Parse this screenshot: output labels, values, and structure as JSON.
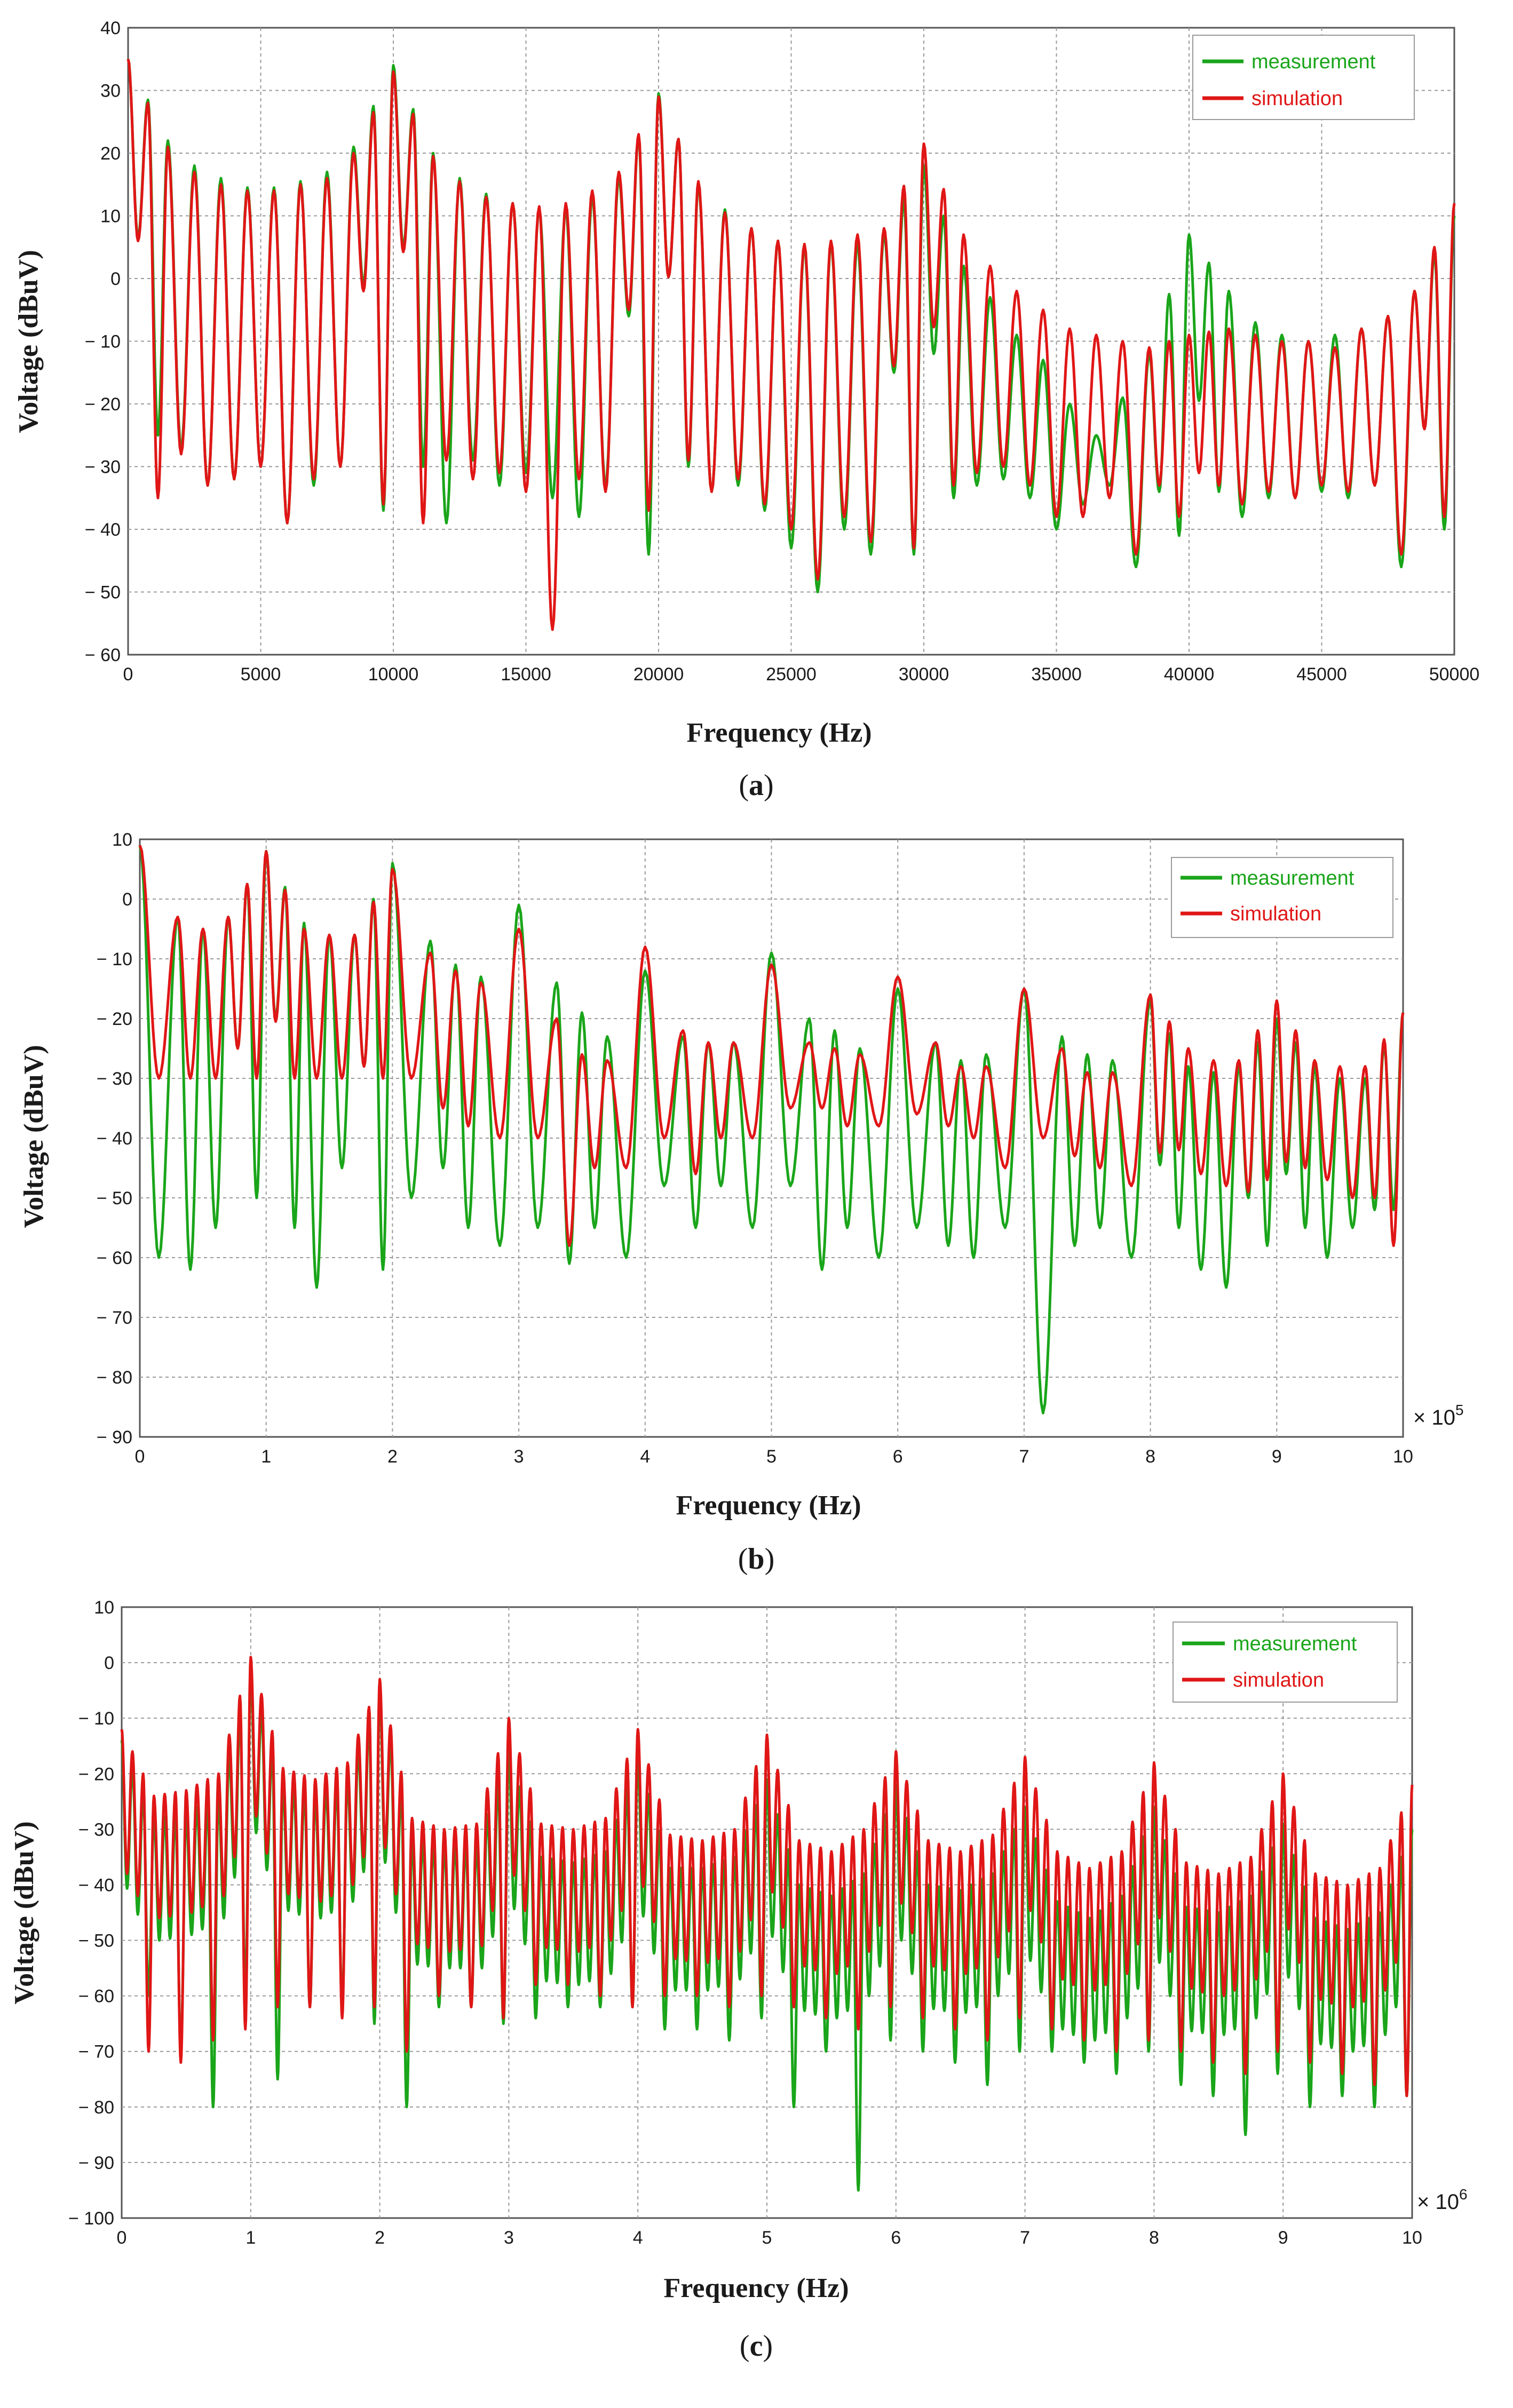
{
  "colors": {
    "measurement": "#1aa51a",
    "simulation": "#e01616",
    "grid": "#9a9a9a",
    "axis": "#555555"
  },
  "chart_data": [
    {
      "id": "a",
      "type": "line",
      "caption": "a",
      "xlabel": "Frequency (Hz)",
      "ylabel": "Voltage (dBuV)",
      "xlim": [
        0,
        50000
      ],
      "ylim": [
        -60,
        40
      ],
      "x_ticks": [
        0,
        5000,
        10000,
        15000,
        20000,
        25000,
        30000,
        35000,
        40000,
        45000,
        50000
      ],
      "x_tick_labels": [
        "0",
        "5000",
        "10000",
        "15000",
        "20000",
        "25000",
        "30000",
        "35000",
        "40000",
        "45000",
        "50000"
      ],
      "y_ticks": [
        -60,
        -50,
        -40,
        -30,
        -20,
        -10,
        0,
        10,
        20,
        30,
        40
      ],
      "y_tick_labels": [
        "− 60",
        "− 50",
        "− 40",
        "− 30",
        "− 20",
        "− 10",
        "0",
        "10",
        "20",
        "30",
        "40"
      ],
      "x_multiplier": null,
      "legend": [
        "measurement",
        "simulation"
      ],
      "lobe_width": 1000,
      "series": [
        {
          "name": "measurement",
          "peaks_x": [
            0,
            1500,
            2500,
            3500,
            4500,
            5500,
            6500,
            7500,
            8500,
            10000,
            11500,
            12500,
            13500,
            14500,
            15500,
            16500,
            17500,
            18500,
            20000,
            21500,
            22500,
            23500,
            24500,
            25500,
            26500,
            27500,
            28500,
            30000,
            31500,
            32500,
            33500,
            34500,
            35500,
            36500,
            37500,
            38500,
            40000,
            41500,
            42500,
            43500,
            44500,
            45500,
            46500,
            47500,
            48500,
            50000
          ],
          "peaks_y": [
            35,
            22,
            18,
            16,
            14.5,
            14.5,
            15.5,
            17,
            21,
            34,
            20,
            16,
            13.5,
            12,
            11,
            11,
            13,
            16,
            29.5,
            15,
            11,
            8,
            6,
            5,
            5.5,
            5.5,
            7,
            18,
            2,
            -3,
            -9,
            -13,
            -20,
            -25,
            -19,
            -12,
            7,
            -2,
            -7,
            -9,
            -10,
            -9,
            -8,
            -6,
            -2,
            10
          ],
          "nulls_y": [
            -25,
            -27,
            -33,
            -32,
            -30,
            -39,
            -33,
            -30,
            -37,
            -30,
            -39,
            -29,
            -33,
            -31,
            -35,
            -38,
            -33,
            -44,
            -30,
            -34,
            -33,
            -37,
            -43,
            -50,
            -40,
            -44,
            -44,
            -35,
            -33,
            -32,
            -35,
            -40,
            -36,
            -33,
            -46,
            -41,
            -34,
            -38,
            -35,
            -35,
            -34,
            -35,
            -33,
            -46,
            -40
          ]
        },
        {
          "name": "simulation",
          "peaks_x": [
            0,
            1500,
            2500,
            3500,
            4500,
            5500,
            6500,
            7500,
            8500,
            10000,
            11500,
            12500,
            13500,
            14500,
            15500,
            16500,
            17500,
            18500,
            20000,
            21500,
            22500,
            23500,
            24500,
            25500,
            26500,
            27500,
            28500,
            30000,
            31500,
            32500,
            33500,
            34500,
            35500,
            36500,
            37500,
            38500,
            40000,
            41500,
            42500,
            43500,
            44500,
            45500,
            46500,
            47500,
            48500,
            50000
          ],
          "peaks_y": [
            35,
            21,
            17,
            15,
            14,
            14,
            15,
            16,
            20,
            33,
            19.5,
            15.5,
            13,
            12,
            11.5,
            12,
            14,
            17,
            29,
            15.5,
            10.5,
            8,
            6,
            5.5,
            6,
            7,
            8,
            21.5,
            7,
            2,
            -2,
            -5,
            -8,
            -9,
            -10,
            -11,
            -9,
            -8,
            -9,
            -10,
            -10,
            -11,
            -8,
            -6,
            -2,
            12
          ],
          "nulls_y": [
            -35,
            -28,
            -33,
            -32,
            -30,
            -39,
            -32,
            -30,
            -36,
            -39,
            -29,
            -32,
            -31,
            -34,
            -56,
            -32,
            -34,
            -37,
            -29,
            -34,
            -32,
            -36,
            -40,
            -48,
            -38,
            -42,
            -43,
            -33,
            -31,
            -30,
            -33,
            -38,
            -38,
            -35,
            -44,
            -38,
            -33,
            -36,
            -34,
            -35,
            -33,
            -34,
            -33,
            -44,
            -38
          ]
        }
      ]
    },
    {
      "id": "b",
      "type": "line",
      "caption": "b",
      "xlabel": "Frequency (Hz)",
      "ylabel": "Voltage (dBuV)",
      "xlim": [
        0,
        10
      ],
      "ylim": [
        -90,
        10
      ],
      "x_ticks": [
        0,
        1,
        2,
        3,
        4,
        5,
        6,
        7,
        8,
        9,
        10
      ],
      "x_tick_labels": [
        "0",
        "1",
        "2",
        "3",
        "4",
        "5",
        "6",
        "7",
        "8",
        "9",
        "10"
      ],
      "y_ticks": [
        -90,
        -80,
        -70,
        -60,
        -50,
        -40,
        -30,
        -20,
        -10,
        0,
        10
      ],
      "y_tick_labels": [
        "− 90",
        "− 80",
        "− 70",
        "− 60",
        "− 50",
        "− 40",
        "− 30",
        "− 20",
        "− 10",
        "0",
        "10"
      ],
      "x_multiplier": {
        "base": "× 10",
        "exp": "5"
      },
      "legend": [
        "measurement",
        "simulation"
      ],
      "lobe_width": 0.2,
      "series": [
        {
          "name": "measurement",
          "peaks_x": [
            0,
            0.3,
            0.5,
            0.7,
            1.0,
            1.3,
            1.5,
            1.7,
            2.0,
            2.3,
            2.5,
            2.7,
            3.0,
            3.3,
            3.5,
            3.7,
            4.0,
            4.3,
            4.5,
            4.7,
            5.0,
            5.3,
            5.5,
            5.7,
            6.0,
            6.3,
            6.5,
            6.7,
            7.0,
            7.3,
            7.5,
            7.7,
            8.0,
            8.3,
            8.5,
            8.7,
            9.0,
            9.3,
            9.5,
            9.7,
            10.0
          ],
          "peaks_y": [
            9,
            -3,
            -5,
            -3,
            8,
            -4,
            -6,
            -6,
            6,
            -7,
            -11,
            -13,
            -1,
            -14,
            -19,
            -23,
            -12,
            -23,
            -24,
            -24,
            -9,
            -20,
            -22,
            -25,
            -15,
            -24,
            -27,
            -26,
            -15,
            -23,
            -26,
            -27,
            -17,
            -28,
            -29,
            -28,
            -20,
            -28,
            -30,
            -30,
            -19
          ],
          "nulls_y": [
            -60,
            -62,
            -55,
            -50,
            -55,
            -65,
            -45,
            -62,
            -50,
            -45,
            -55,
            -58,
            -55,
            -61,
            -55,
            -60,
            -48,
            -55,
            -48,
            -55,
            -48,
            -62,
            -55,
            -60,
            -55,
            -58,
            -60,
            -55,
            -86,
            -58,
            -55,
            -60,
            -55,
            -62,
            -65,
            -58,
            -55,
            -60,
            -55,
            -52
          ]
        },
        {
          "name": "simulation",
          "peaks_x": [
            0,
            0.3,
            0.5,
            0.7,
            1.0,
            1.3,
            1.5,
            1.7,
            2.0,
            2.3,
            2.5,
            2.7,
            3.0,
            3.3,
            3.5,
            3.7,
            4.0,
            4.3,
            4.5,
            4.7,
            5.0,
            5.3,
            5.5,
            5.7,
            6.0,
            6.3,
            6.5,
            6.7,
            7.0,
            7.3,
            7.5,
            7.7,
            8.0,
            8.3,
            8.5,
            8.7,
            9.0,
            9.3,
            9.5,
            9.7,
            10.0
          ],
          "peaks_y": [
            9,
            -3,
            -5,
            -3,
            8,
            -5,
            -6,
            -6,
            5,
            -9,
            -12,
            -14,
            -5,
            -20,
            -26,
            -27,
            -8,
            -22,
            -24,
            -24,
            -11,
            -24,
            -25,
            -26,
            -13,
            -24,
            -28,
            -28,
            -15,
            -25,
            -29,
            -29,
            -16,
            -25,
            -27,
            -27,
            -17,
            -27,
            -28,
            -28,
            -19
          ],
          "nulls_y": [
            -30,
            -30,
            -30,
            -30,
            -30,
            -30,
            -30,
            -30,
            -30,
            -35,
            -38,
            -40,
            -40,
            -58,
            -45,
            -45,
            -40,
            -46,
            -40,
            -40,
            -35,
            -35,
            -38,
            -38,
            -36,
            -38,
            -40,
            -45,
            -40,
            -43,
            -45,
            -48,
            -42,
            -46,
            -48,
            -47,
            -45,
            -47,
            -50,
            -58
          ]
        }
      ]
    },
    {
      "id": "c",
      "type": "line",
      "caption": "c",
      "xlabel": "Frequency (Hz)",
      "ylabel": "Voltage (dBuV)",
      "xlim": [
        0,
        10
      ],
      "ylim": [
        -100,
        10
      ],
      "x_ticks": [
        0,
        1,
        2,
        3,
        4,
        5,
        6,
        7,
        8,
        9,
        10
      ],
      "x_tick_labels": [
        "0",
        "1",
        "2",
        "3",
        "4",
        "5",
        "6",
        "7",
        "8",
        "9",
        "10"
      ],
      "y_ticks": [
        -100,
        -90,
        -80,
        -70,
        -60,
        -50,
        -40,
        -30,
        -20,
        -10,
        0,
        10
      ],
      "y_tick_labels": [
        "− 100",
        "− 90",
        "− 80",
        "− 70",
        "− 60",
        "− 50",
        "− 40",
        "− 30",
        "− 20",
        "− 10",
        "0",
        "10"
      ],
      "x_multiplier": {
        "base": "× 10",
        "exp": "6"
      },
      "legend": [
        "measurement",
        "simulation"
      ],
      "lobe_width": 0.1,
      "series": [
        {
          "name": "measurement",
          "peaks_x": [
            0,
            0.25,
            0.5,
            0.75,
            1.0,
            1.25,
            1.5,
            1.75,
            2.0,
            2.25,
            2.5,
            2.75,
            3.0,
            3.25,
            3.5,
            3.75,
            4.0,
            4.25,
            4.5,
            4.75,
            5.0,
            5.25,
            5.5,
            5.75,
            6.0,
            6.25,
            6.5,
            6.75,
            7.0,
            7.25,
            7.5,
            7.75,
            8.0,
            8.25,
            8.5,
            8.75,
            9.0,
            9.25,
            9.5,
            9.75,
            10.0
          ],
          "peaks_y": [
            -14,
            -28,
            -27,
            -24,
            -2,
            -22,
            -24,
            -21,
            -5,
            -32,
            -33,
            -33,
            -16,
            -35,
            -36,
            -34,
            -17,
            -37,
            -37,
            -35,
            -21,
            -40,
            -42,
            -38,
            -22,
            -40,
            -41,
            -38,
            -26,
            -43,
            -46,
            -42,
            -26,
            -44,
            -45,
            -42,
            -29,
            -46,
            -48,
            -45,
            -30
          ],
          "nulls_y": [
            -60,
            -70,
            -80,
            -60,
            -75,
            -62,
            -62,
            -65,
            -80,
            -62,
            -62,
            -65,
            -64,
            -62,
            -62,
            -62,
            -66,
            -66,
            -68,
            -64,
            -80,
            -70,
            -95,
            -68,
            -70,
            -72,
            -76,
            -70,
            -70,
            -72,
            -74,
            -70,
            -76,
            -78,
            -85,
            -74,
            -80,
            -78,
            -80,
            -78
          ]
        },
        {
          "name": "simulation",
          "peaks_x": [
            0,
            0.25,
            0.5,
            0.75,
            1.0,
            1.25,
            1.5,
            1.75,
            2.0,
            2.25,
            2.5,
            2.75,
            3.0,
            3.25,
            3.5,
            3.75,
            4.0,
            4.25,
            4.5,
            4.75,
            5.0,
            5.25,
            5.5,
            5.75,
            6.0,
            6.25,
            6.5,
            6.75,
            7.0,
            7.25,
            7.5,
            7.75,
            8.0,
            8.25,
            8.5,
            8.75,
            9.0,
            9.25,
            9.5,
            9.75,
            10.0
          ],
          "peaks_y": [
            -12,
            -24,
            -23,
            -20,
            1,
            -19,
            -21,
            -18,
            -3,
            -28,
            -30,
            -29,
            -10,
            -29,
            -30,
            -28,
            -12,
            -31,
            -32,
            -30,
            -13,
            -32,
            -34,
            -30,
            -16,
            -32,
            -34,
            -31,
            -17,
            -34,
            -37,
            -34,
            -18,
            -36,
            -38,
            -35,
            -20,
            -38,
            -40,
            -37,
            -22
          ],
          "nulls_y": [
            -70,
            -72,
            -68,
            -66,
            -62,
            -62,
            -64,
            -62,
            -70,
            -60,
            -62,
            -64,
            -58,
            -58,
            -60,
            -62,
            -60,
            -60,
            -62,
            -60,
            -62,
            -64,
            -66,
            -62,
            -64,
            -66,
            -68,
            -64,
            -66,
            -68,
            -70,
            -68,
            -70,
            -72,
            -74,
            -70,
            -72,
            -74,
            -76,
            -78
          ]
        }
      ]
    }
  ]
}
